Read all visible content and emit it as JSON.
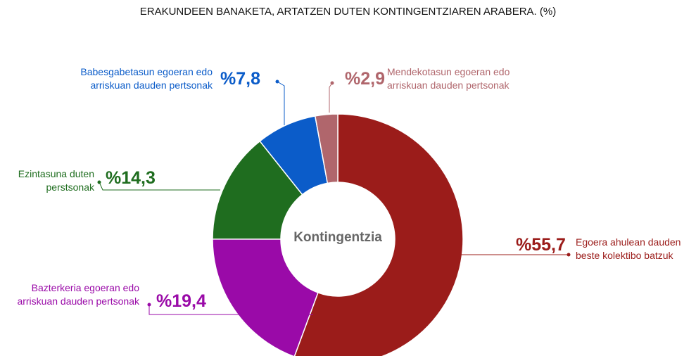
{
  "chart_data": {
    "type": "donut",
    "title": "ERAKUNDEEN BANAKETA, ARTATZEN DUTEN KONTINGENTZIAREN ARABERA. (%)",
    "center_label": "Kontingentzia",
    "categories": [
      "Egoera ahulean dauden beste kolektibo batzuk",
      "Bazterkeria egoeran edo arriskuan dauden pertsonak",
      "Ezintasuna duten perstsonak",
      "Babesgabetasun egoeran edo arriskuan dauden pertsonak",
      "Mendekotasun egoeran edo arriskuan dauden pertsonak"
    ],
    "values": [
      55.7,
      19.4,
      14.3,
      7.8,
      2.9
    ],
    "value_labels": [
      "%55,7",
      "%19,4",
      "%14,3",
      "%7,8",
      "%2,9"
    ],
    "colors": [
      "#9b1c1a",
      "#9a0aa8",
      "#1f6d1f",
      "#0b5cc9",
      "#b0666c"
    ]
  }
}
